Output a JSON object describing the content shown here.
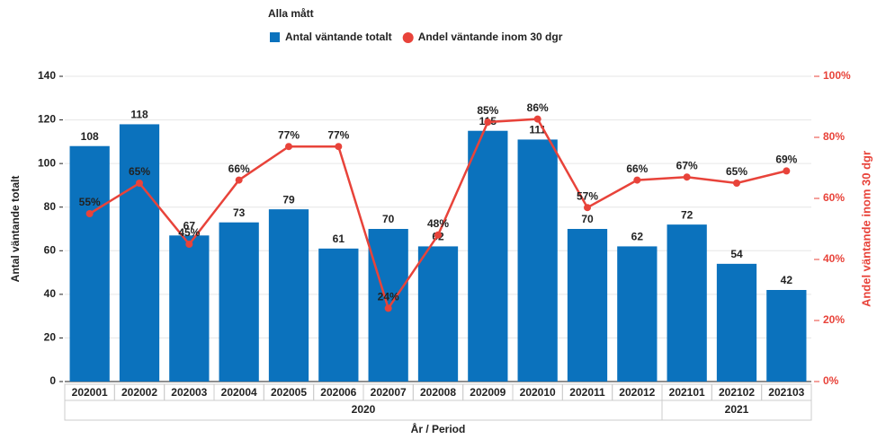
{
  "chart_data": {
    "type": "bar-line",
    "title": "Alla mått",
    "categories": [
      "202001",
      "202002",
      "202003",
      "202004",
      "202005",
      "202006",
      "202007",
      "202008",
      "202009",
      "202010",
      "202011",
      "202012",
      "202101",
      "202102",
      "202103"
    ],
    "groups": [
      {
        "label": "2020",
        "span": 12
      },
      {
        "label": "2021",
        "span": 3
      }
    ],
    "x_label": "År / Period",
    "y_label": "Antal väntande totalt",
    "y2_label": "Andel väntande inom 30 dgr",
    "series": [
      {
        "name": "Antal väntande totalt",
        "color": "#0b72bd",
        "kind": "bar",
        "values": [
          108,
          118,
          67,
          73,
          79,
          61,
          70,
          62,
          115,
          111,
          70,
          62,
          72,
          54,
          42
        ]
      },
      {
        "name": "Andel väntande inom 30 dgr",
        "color": "#e8433a",
        "kind": "line",
        "axis": "y2",
        "values": [
          55,
          65,
          45,
          66,
          77,
          77,
          24,
          48,
          85,
          86,
          57,
          66,
          67,
          65,
          69
        ],
        "value_labels": [
          "55%",
          "65%",
          "45%",
          "66%",
          "77%",
          "77%",
          "24%",
          "48%",
          "85%",
          "86%",
          "57%",
          "66%",
          "67%",
          "65%",
          "69%"
        ]
      }
    ],
    "ylim": [
      0,
      140
    ],
    "yticks": [
      0,
      20,
      40,
      60,
      80,
      100,
      120,
      140
    ],
    "y2lim": [
      0,
      100
    ],
    "y2ticks": [
      {
        "value": 0,
        "label": "0%"
      },
      {
        "value": 20,
        "label": "20%"
      },
      {
        "value": 40,
        "label": "40%"
      },
      {
        "value": 60,
        "label": "60%"
      },
      {
        "value": 80,
        "label": "80%"
      },
      {
        "value": 100,
        "label": "100%"
      }
    ],
    "grid": true
  }
}
